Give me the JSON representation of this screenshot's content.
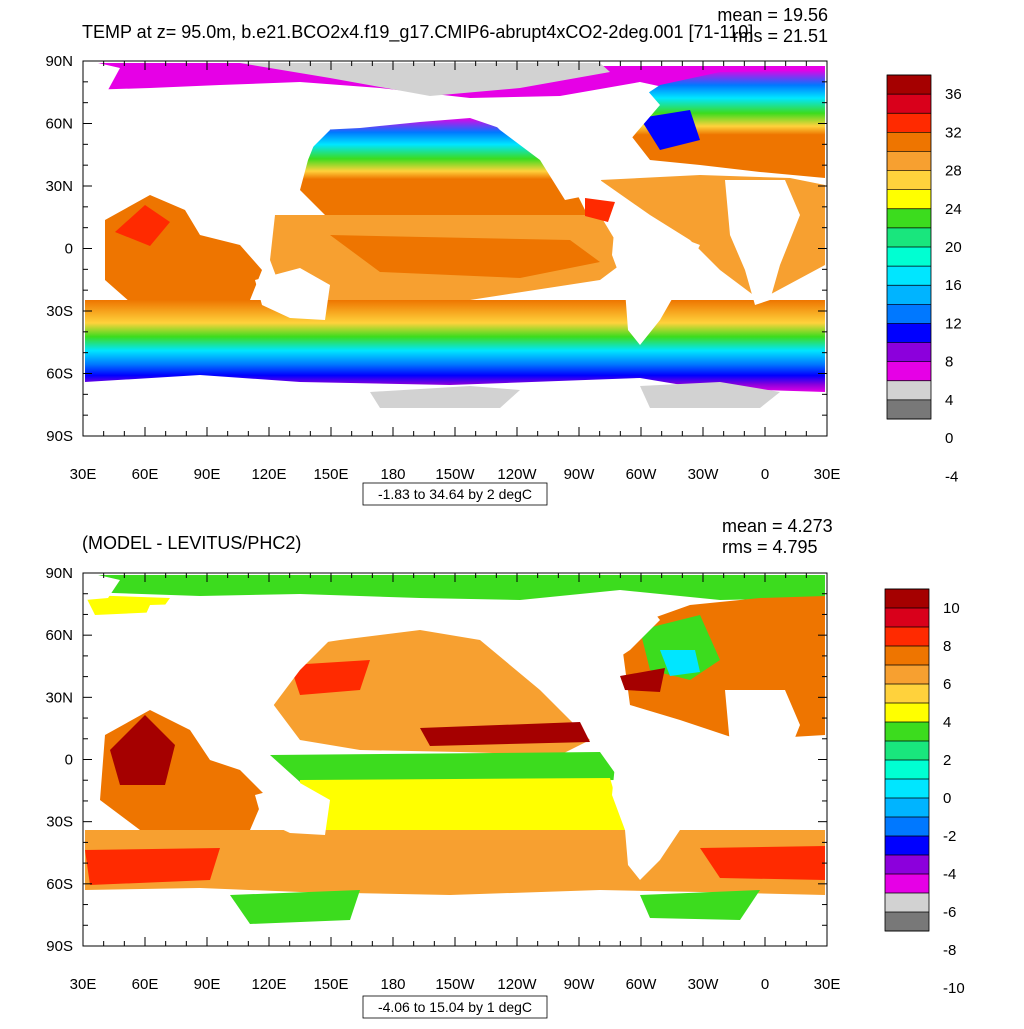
{
  "chart_data": [
    {
      "type": "heatmap",
      "title": "TEMP at z=  95.0m, b.e21.BCO2x4.f19_g17.CMIP6-abrupt4xCO2-2deg.001 [71-110]",
      "stats": {
        "mean": "mean = 19.56",
        "rms": "rms = 21.51"
      },
      "range_label": "-1.83 to 34.64 by 2 degC",
      "x_ticks": [
        "30E",
        "60E",
        "90E",
        "120E",
        "150E",
        "180",
        "150W",
        "120W",
        "90W",
        "60W",
        "30W",
        "0",
        "30E"
      ],
      "y_ticks": [
        "90N",
        "60N",
        "30N",
        "0",
        "30S",
        "60S",
        "90S"
      ],
      "colorbar": {
        "labels": [
          "36",
          "32",
          "28",
          "24",
          "20",
          "16",
          "12",
          "8",
          "4",
          "0",
          "-4"
        ],
        "colors": [
          "#a50000",
          "#d9001b",
          "#ff2a00",
          "#ee7500",
          "#f7a030",
          "#ffd23c",
          "#ffff00",
          "#3cdc1e",
          "#19e67d",
          "#00ffd2",
          "#00e6ff",
          "#00b4ff",
          "#0078ff",
          "#0000ff",
          "#8c00dc",
          "#e600e6",
          "#d2d2d2",
          "#787878"
        ]
      }
    },
    {
      "type": "heatmap",
      "title": "(MODEL - LEVITUS/PHC2)",
      "stats": {
        "mean": "mean = 4.273",
        "rms": "rms = 4.795"
      },
      "range_label": "-4.06 to 15.04 by 1 degC",
      "x_ticks": [
        "30E",
        "60E",
        "90E",
        "120E",
        "150E",
        "180",
        "150W",
        "120W",
        "90W",
        "60W",
        "30W",
        "0",
        "30E"
      ],
      "y_ticks": [
        "90N",
        "60N",
        "30N",
        "0",
        "30S",
        "60S",
        "90S"
      ],
      "colorbar": {
        "labels": [
          "10",
          "8",
          "6",
          "4",
          "2",
          "0",
          "-2",
          "-4",
          "-6",
          "-8",
          "-10"
        ],
        "colors": [
          "#a50000",
          "#d9001b",
          "#ff2a00",
          "#ee7500",
          "#f7a030",
          "#ffd23c",
          "#ffff00",
          "#3cdc1e",
          "#19e67d",
          "#00ffd2",
          "#00e6ff",
          "#00b4ff",
          "#0078ff",
          "#0000ff",
          "#8c00dc",
          "#e600e6",
          "#d2d2d2",
          "#787878"
        ]
      }
    }
  ]
}
